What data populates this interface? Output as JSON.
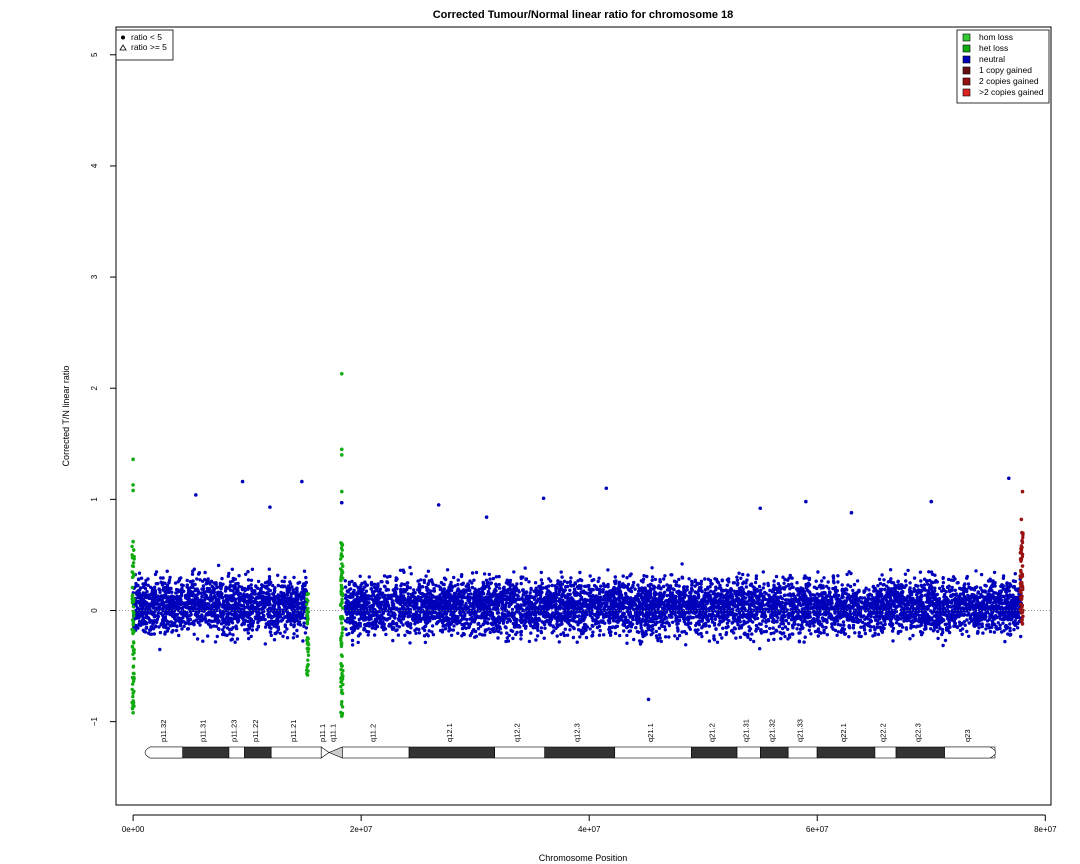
{
  "chart_data": {
    "type": "scatter",
    "title": "Corrected Tumour/Normal linear ratio for chromosome  18",
    "xlabel": "Chromosome Position",
    "ylabel": "Corrected T/N linear ratio",
    "xlim": [
      -1500000,
      80500000
    ],
    "ylim": [
      -1.75,
      5.25
    ],
    "x_ticks": [
      0,
      20000000,
      40000000,
      60000000,
      80000000
    ],
    "x_tick_labels": [
      "0e+00",
      "2e+07",
      "4e+07",
      "6e+07",
      "8e+07"
    ],
    "y_ticks": [
      -1,
      0,
      1,
      2,
      3,
      4,
      5
    ],
    "y_tick_labels": [
      "−1",
      "0",
      "1",
      "2",
      "3",
      "4",
      "5"
    ],
    "reference_line_y": 0,
    "shape_legend": {
      "position": "top-left",
      "items": [
        {
          "symbol": "dot",
          "label": "ratio < 5"
        },
        {
          "symbol": "triangle",
          "label": "ratio >= 5"
        }
      ]
    },
    "state_legend": {
      "position": "top-right",
      "items": [
        {
          "label": "hom loss",
          "color": "#33cc33"
        },
        {
          "label": "het loss",
          "color": "#11aa11"
        },
        {
          "label": "neutral",
          "color": "#0000bb"
        },
        {
          "label": "1 copy gained",
          "color": "#661111"
        },
        {
          "label": "2 copies gained",
          "color": "#991111"
        },
        {
          "label": ">2 copies gained",
          "color": "#dd2222"
        }
      ]
    },
    "series": [
      {
        "name": "neutral",
        "color": "#0000bb",
        "segments": [
          [
            0,
            15300000
          ],
          [
            18600000,
            77900000
          ]
        ],
        "typical_range": [
          -0.4,
          0.5
        ],
        "x": [
          5500000,
          9600000,
          14800000,
          18300000,
          26800000,
          36000000,
          41500000,
          45200000,
          55000000,
          59000000,
          70000000,
          76800000,
          12000000,
          31000000,
          63000000
        ],
        "y": [
          1.04,
          1.16,
          1.16,
          0.97,
          0.95,
          1.01,
          1.1,
          -0.8,
          0.92,
          0.98,
          0.98,
          1.19,
          0.93,
          0.84,
          0.88
        ]
      },
      {
        "name": "het loss",
        "color": "#11aa11",
        "x": [
          0,
          0,
          0,
          0,
          0,
          0,
          15300000,
          15300000,
          15300000,
          15300000,
          18300000,
          18300000,
          18300000,
          18300000,
          18300000,
          18300000,
          18300000
        ],
        "y": [
          1.36,
          1.13,
          1.08,
          0.62,
          -0.85,
          -0.92,
          0.15,
          -0.05,
          -0.3,
          -0.58,
          2.13,
          1.45,
          1.4,
          1.07,
          0.6,
          -0.5,
          -0.95
        ]
      },
      {
        "name": "2 copies gained",
        "color": "#991111",
        "x": [
          78000000,
          77900000,
          77950000,
          78000000,
          77900000,
          78000000
        ],
        "y": [
          1.07,
          0.82,
          0.7,
          0.4,
          0.1,
          -0.12
        ]
      }
    ],
    "ideogram": {
      "start": 0,
      "end": 76000000,
      "bands": [
        {
          "label": "p11.32",
          "start": 0,
          "end": 2900000,
          "stain": "gneg"
        },
        {
          "label": "p11.31",
          "start": 2900000,
          "end": 7100000,
          "stain": "gpos"
        },
        {
          "label": "p11.23",
          "start": 7100000,
          "end": 8500000,
          "stain": "gneg"
        },
        {
          "label": "p11.22",
          "start": 8500000,
          "end": 10900000,
          "stain": "gpos"
        },
        {
          "label": "p11.21",
          "start": 10900000,
          "end": 15400000,
          "stain": "gneg"
        },
        {
          "label": "p11.1",
          "start": 15400000,
          "end": 16100000,
          "stain": "acen"
        },
        {
          "label": "q11.1",
          "start": 16100000,
          "end": 17300000,
          "stain": "stalk"
        },
        {
          "label": "q11.2",
          "start": 17300000,
          "end": 23300000,
          "stain": "gneg"
        },
        {
          "label": "q12.1",
          "start": 23300000,
          "end": 31000000,
          "stain": "gpos"
        },
        {
          "label": "q12.2",
          "start": 31000000,
          "end": 35500000,
          "stain": "gneg"
        },
        {
          "label": "q12.3",
          "start": 35500000,
          "end": 41800000,
          "stain": "gpos"
        },
        {
          "label": "q21.1",
          "start": 41800000,
          "end": 48700000,
          "stain": "gneg"
        },
        {
          "label": "q21.2",
          "start": 48700000,
          "end": 52800000,
          "stain": "gpos"
        },
        {
          "label": "q21.31",
          "start": 52800000,
          "end": 54900000,
          "stain": "gneg"
        },
        {
          "label": "q21.32",
          "start": 54900000,
          "end": 57400000,
          "stain": "gpos"
        },
        {
          "label": "q21.33",
          "start": 57400000,
          "end": 60000000,
          "stain": "gneg"
        },
        {
          "label": "q22.1",
          "start": 60000000,
          "end": 65200000,
          "stain": "gpos"
        },
        {
          "label": "q22.2",
          "start": 65200000,
          "end": 67100000,
          "stain": "gneg"
        },
        {
          "label": "q22.3",
          "start": 67100000,
          "end": 71500000,
          "stain": "gpos"
        },
        {
          "label": "q23",
          "start": 71500000,
          "end": 76000000,
          "stain": "gneg"
        }
      ]
    }
  }
}
